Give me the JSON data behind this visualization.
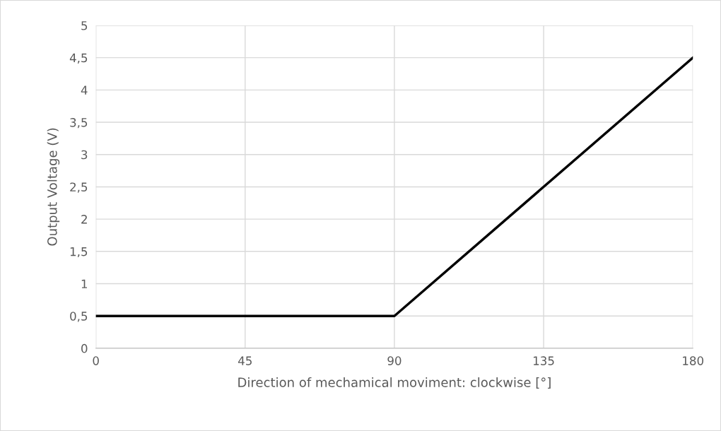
{
  "chart_data": {
    "type": "line",
    "xlabel": "Direction of mechamical moviment: clockwise [°]",
    "ylabel": "Output Voltage (V)",
    "x": [
      0,
      90,
      180
    ],
    "series": [
      {
        "color": "#000000",
        "values": [
          0.5,
          0.5,
          4.5
        ]
      }
    ],
    "xlim": [
      0,
      180
    ],
    "xticks": [
      0,
      45,
      90,
      135,
      180
    ],
    "ylim": [
      0,
      5
    ],
    "yticks": [
      0,
      {
        "value": 0.5,
        "label": "0,5"
      },
      1,
      {
        "value": 1.5,
        "label": "1,5"
      },
      2,
      {
        "value": 2.5,
        "label": "2,5"
      },
      3,
      {
        "value": 3.5,
        "label": "3,5"
      },
      4,
      {
        "value": 4.5,
        "label": "4,5"
      },
      5
    ],
    "grid": true,
    "marker": "none",
    "line_style": "solid"
  }
}
